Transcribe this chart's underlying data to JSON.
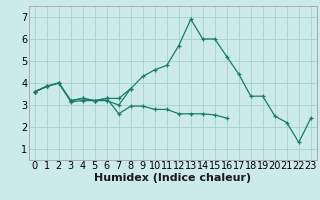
{
  "xlabel": "Humidex (Indice chaleur)",
  "xlim": [
    -0.5,
    23.5
  ],
  "ylim": [
    0.5,
    7.5
  ],
  "xticks": [
    0,
    1,
    2,
    3,
    4,
    5,
    6,
    7,
    8,
    9,
    10,
    11,
    12,
    13,
    14,
    15,
    16,
    17,
    18,
    19,
    20,
    21,
    22,
    23
  ],
  "yticks": [
    1,
    2,
    3,
    4,
    5,
    6,
    7
  ],
  "bg_color": "#cceaea",
  "grid_color": "#aad4d4",
  "line_color": "#1a7a6e",
  "series": [
    [
      3.6,
      3.85,
      4.0,
      3.15,
      3.2,
      3.2,
      3.2,
      3.0,
      3.75,
      4.3,
      4.6,
      4.8,
      5.7,
      6.9,
      6.0,
      6.0,
      5.2,
      4.4,
      3.4,
      3.4,
      2.5,
      2.2,
      1.3,
      2.4
    ],
    [
      3.6,
      3.85,
      4.0,
      3.2,
      3.3,
      3.2,
      3.3,
      3.3,
      3.75,
      null,
      null,
      null,
      null,
      null,
      null,
      null,
      null,
      null,
      null,
      null,
      null,
      null,
      null,
      null
    ],
    [
      3.6,
      3.85,
      4.0,
      3.2,
      3.3,
      3.2,
      3.3,
      2.6,
      2.95,
      2.95,
      2.8,
      2.8,
      2.6,
      2.6,
      2.6,
      2.55,
      2.4,
      null,
      null,
      null,
      null,
      null,
      null,
      null
    ],
    [
      3.6,
      3.85,
      null,
      null,
      null,
      null,
      null,
      null,
      null,
      null,
      null,
      null,
      null,
      null,
      null,
      null,
      null,
      null,
      null,
      null,
      null,
      null,
      null,
      null
    ]
  ],
  "tick_fontsize": 7,
  "xlabel_fontsize": 8
}
